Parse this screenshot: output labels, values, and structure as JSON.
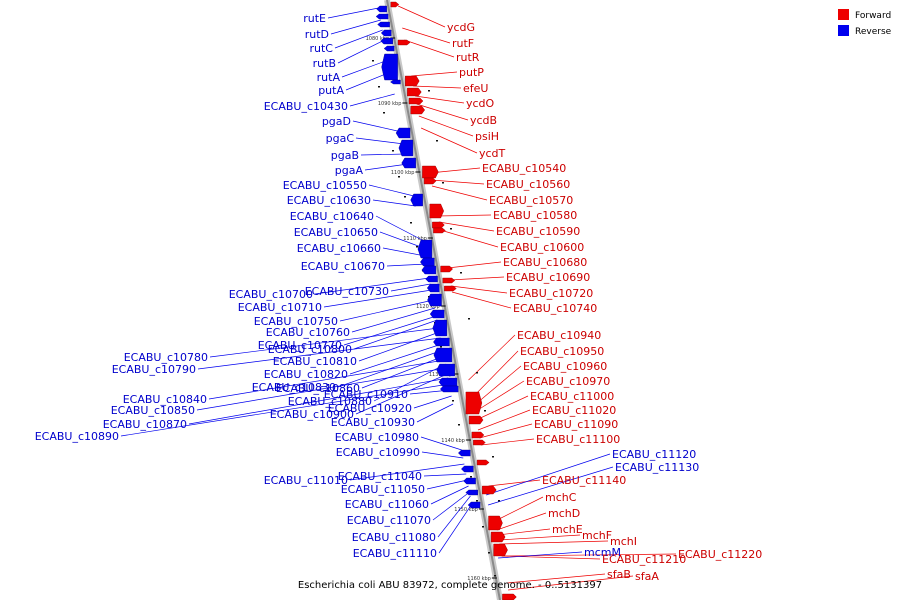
{
  "caption": "Escherichia coli ABU 83972, complete genome. - 0..5131397",
  "legend": {
    "forward_label": "Forward",
    "reverse_label": "Reverse",
    "forward_color": "#ee0000",
    "reverse_color": "#0000ee"
  },
  "ticks": [
    "1080 kbp",
    "1090 kbp",
    "1100 kbp",
    "1110 kbp",
    "1120 kbp",
    "1130 kbp",
    "1140 kbp",
    "1150 kbp",
    "1160 kbp"
  ],
  "forward_genes": [
    "ycdG",
    "rutF",
    "rutR",
    "putP",
    "efeU",
    "ycdO",
    "ycdB",
    "psiH",
    "ycdT",
    "ECABU_c10540",
    "ECABU_c10560",
    "ECABU_c10570",
    "ECABU_c10580",
    "ECABU_c10590",
    "ECABU_c10600",
    "ECABU_c10680",
    "ECABU_c10690",
    "ECABU_c10720",
    "ECABU_c10740",
    "ECABU_c10940",
    "ECABU_c10950",
    "ECABU_c10960",
    "ECABU_c10970",
    "ECABU_c11000",
    "ECABU_c11020",
    "ECABU_c11090",
    "ECABU_c11100",
    "ECABU_c11140",
    "mchC",
    "mchD",
    "mchE",
    "mchF",
    "mchI",
    "ECABU_c11210",
    "ECABU_c11220",
    "sfaB",
    "sfaA"
  ],
  "reverse_genes": [
    "rutE",
    "rutD",
    "rutC",
    "rutB",
    "rutA",
    "putA",
    "ECABU_c10430",
    "pgaD",
    "pgaC",
    "pgaB",
    "pgaA",
    "ECABU_c10550",
    "ECABU_c10630",
    "ECABU_c10640",
    "ECABU_c10650",
    "ECABU_c10660",
    "ECABU_c10670",
    "ECABU_c10700",
    "ECABU_c10730",
    "ECABU_c10710",
    "ECABU_c10750",
    "ECABU_c10760",
    "ECABU_c10770",
    "ECABU_c10800",
    "ECABU_c10780",
    "ECABU_c10810",
    "ECABU_c10790",
    "ECABU_c10820",
    "ECABU_c10830",
    "ECABU_c10860",
    "ECABU_c10840",
    "ECABU_c10880",
    "ECABU_c10850",
    "ECABU_c10900",
    "ECABU_c10870",
    "ECABU_c10890",
    "ECABU_c10910",
    "ECABU_c10920",
    "ECABU_c10930",
    "ECABU_c10980",
    "ECABU_c10990",
    "ECABU_c11010",
    "ECABU_c11040",
    "ECABU_c11050",
    "ECABU_c11060",
    "ECABU_c11070",
    "ECABU_c11080",
    "ECABU_c11110",
    "ECABU_c11120",
    "ECABU_c11130",
    "mcmM"
  ]
}
